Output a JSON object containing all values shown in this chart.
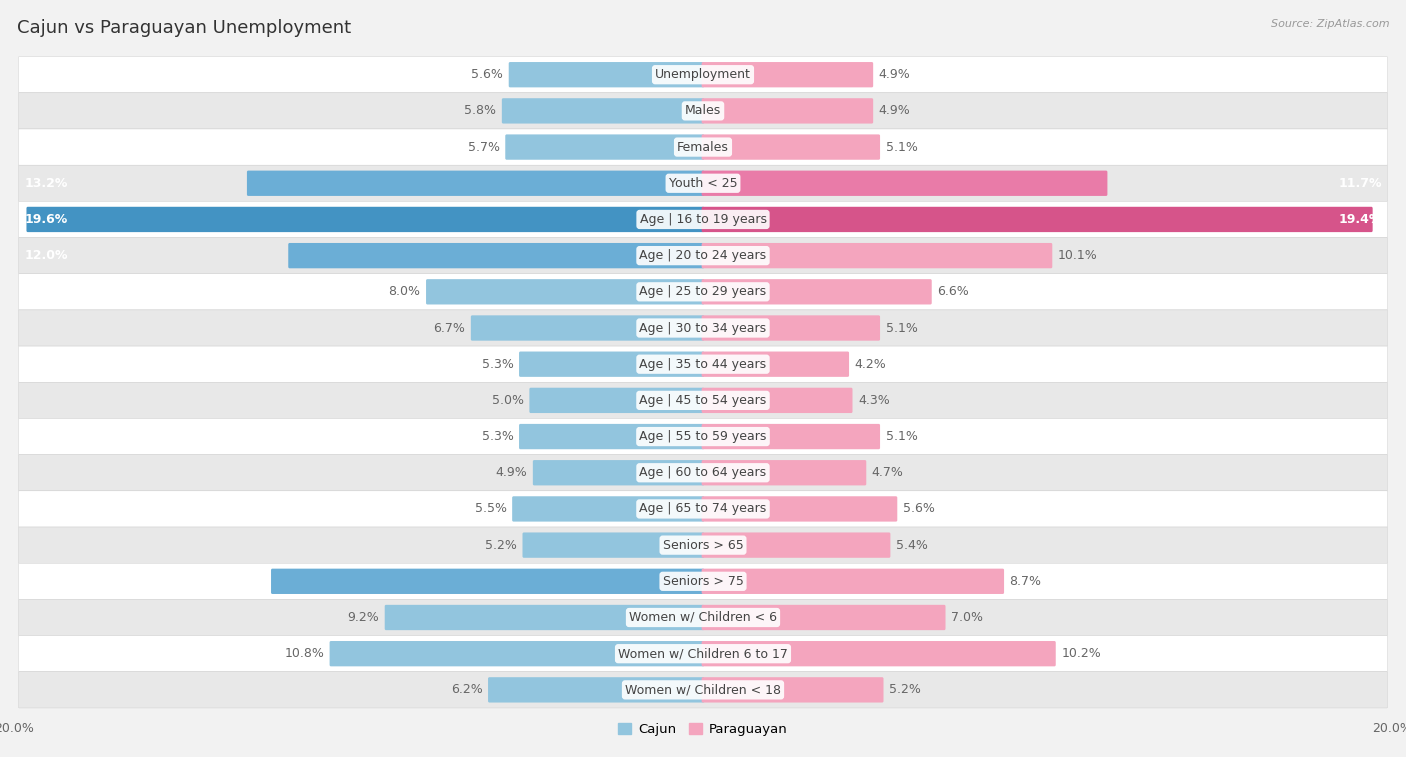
{
  "title": "Cajun vs Paraguayan Unemployment",
  "source": "Source: ZipAtlas.com",
  "categories": [
    "Unemployment",
    "Males",
    "Females",
    "Youth < 25",
    "Age | 16 to 19 years",
    "Age | 20 to 24 years",
    "Age | 25 to 29 years",
    "Age | 30 to 34 years",
    "Age | 35 to 44 years",
    "Age | 45 to 54 years",
    "Age | 55 to 59 years",
    "Age | 60 to 64 years",
    "Age | 65 to 74 years",
    "Seniors > 65",
    "Seniors > 75",
    "Women w/ Children < 6",
    "Women w/ Children 6 to 17",
    "Women w/ Children < 18"
  ],
  "cajun": [
    5.6,
    5.8,
    5.7,
    13.2,
    19.6,
    12.0,
    8.0,
    6.7,
    5.3,
    5.0,
    5.3,
    4.9,
    5.5,
    5.2,
    12.5,
    9.2,
    10.8,
    6.2
  ],
  "paraguayan": [
    4.9,
    4.9,
    5.1,
    11.7,
    19.4,
    10.1,
    6.6,
    5.1,
    4.2,
    4.3,
    5.1,
    4.7,
    5.6,
    5.4,
    8.7,
    7.0,
    10.2,
    5.2
  ],
  "cajun_color_normal": "#92C5DE",
  "cajun_color_medium": "#6BAED6",
  "cajun_color_high": "#4393C3",
  "paraguayan_color_normal": "#F4A5BE",
  "paraguayan_color_medium": "#E97BA8",
  "paraguayan_color_high": "#D6548A",
  "label_color_dark": "#666666",
  "label_color_white": "#ffffff",
  "bg_color": "#f2f2f2",
  "row_bg_white": "#ffffff",
  "row_bg_gray": "#e8e8e8",
  "max_val": 20.0,
  "bar_height": 0.62,
  "title_fontsize": 13,
  "label_fontsize": 9,
  "category_fontsize": 9,
  "axis_fontsize": 9,
  "highlight_thresh_cajun": 12.0,
  "highlight_thresh_paraguayan": 11.0
}
